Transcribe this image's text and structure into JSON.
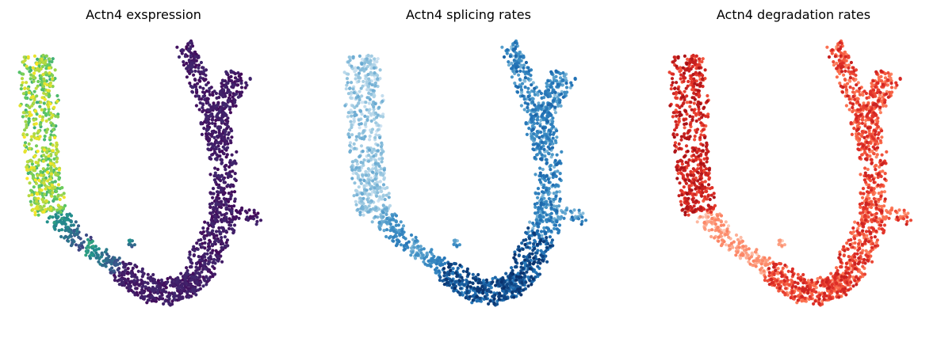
{
  "figure": {
    "panels": [
      {
        "title": "Actn4 exspression",
        "colormap": "viridis"
      },
      {
        "title": "Actn4 splicing rates",
        "colormap": "Blues"
      },
      {
        "title": "Actn4 degradation rates",
        "colormap": "Reds"
      }
    ]
  },
  "chart_data": [
    {
      "type": "scatter",
      "title": "Actn4 exspression",
      "xlabel": "",
      "ylabel": "",
      "axes": "off",
      "grid": false,
      "legend": "none",
      "colormap": "viridis",
      "colormap_stops": [
        "#440154",
        "#3b528b",
        "#21918c",
        "#5ec962",
        "#fde725"
      ],
      "high_value_region": "left arm",
      "low_value_region": "right arm and bottom curve"
    },
    {
      "type": "scatter",
      "title": "Actn4 splicing rates",
      "xlabel": "",
      "ylabel": "",
      "axes": "off",
      "grid": false,
      "legend": "none",
      "colormap": "Blues",
      "colormap_stops": [
        "#deebf7",
        "#9ecae1",
        "#4292c6",
        "#2171b5",
        "#08306b"
      ],
      "high_value_region": "bottom curve",
      "low_value_region": "left arm"
    },
    {
      "type": "scatter",
      "title": "Actn4 degradation rates",
      "xlabel": "",
      "ylabel": "",
      "axes": "off",
      "grid": false,
      "legend": "none",
      "colormap": "Reds",
      "colormap_stops": [
        "#fee0d2",
        "#fc9272",
        "#fb6a4a",
        "#de2d26",
        "#a50f15"
      ],
      "high_value_region": "left arm",
      "low_value_region": "lower-left transition"
    }
  ]
}
